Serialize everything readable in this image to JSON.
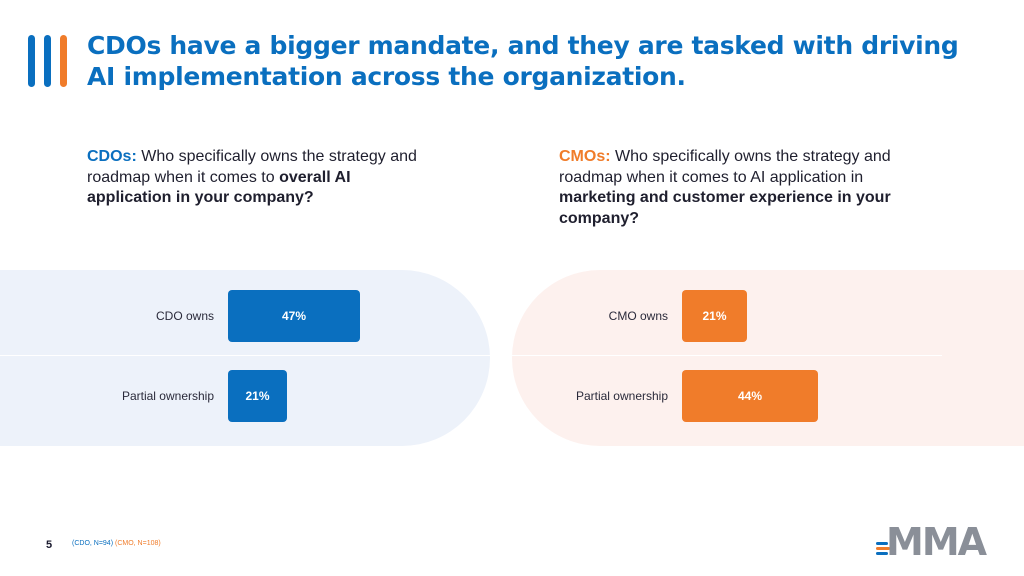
{
  "title": "CDOs have a bigger mandate, and they are tasked with driving AI implementation across the organization.",
  "left_question": {
    "lead": "CDOs:",
    "text_1": " Who specifically owns the strategy and roadmap when it comes to ",
    "bold": "overall AI application in your company?"
  },
  "right_question": {
    "lead": "CMOs:",
    "text_1": " Who specifically owns the strategy and roadmap when it comes to AI application in ",
    "bold": "marketing and customer experience in your company?"
  },
  "chart_data": [
    {
      "type": "bar",
      "orientation": "horizontal",
      "categories": [
        "CDO owns",
        "Partial ownership"
      ],
      "values": [
        47,
        21
      ],
      "data_labels": [
        "47%",
        "21%"
      ],
      "unit": "%",
      "color": "#0a6fbf"
    },
    {
      "type": "bar",
      "orientation": "horizontal",
      "categories": [
        "CMO owns",
        "Partial ownership"
      ],
      "values": [
        21,
        44
      ],
      "data_labels": [
        "21%",
        "44%"
      ],
      "unit": "%",
      "color": "#f07c2a"
    }
  ],
  "footer": {
    "page_number": "5",
    "cdo_note": "(CDO, N=94)",
    "cmo_note": "(CMO, N=108)"
  },
  "logo": {
    "text": "MMA"
  },
  "colors": {
    "blue": "#0a6fbf",
    "orange": "#f07c2a"
  }
}
